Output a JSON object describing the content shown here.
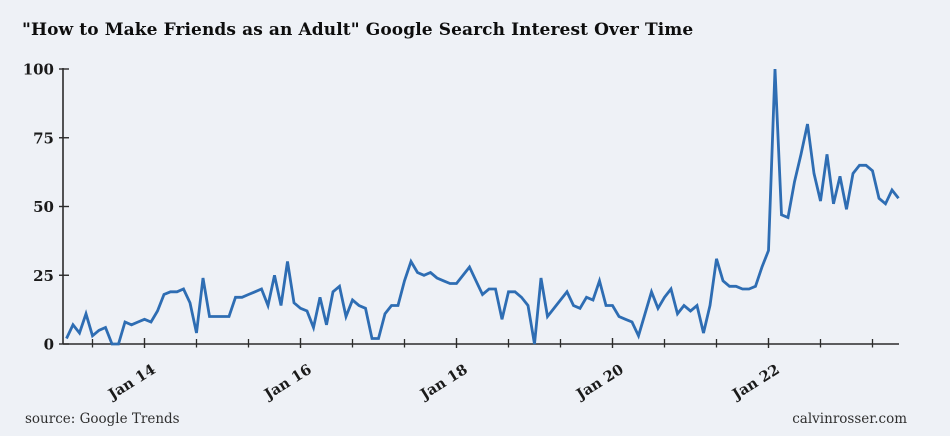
{
  "title": "\"How to Make Friends as an Adult\" Google Search Interest Over Time",
  "footer": {
    "source": "source: Google Trends",
    "site": "calvinrosser.com"
  },
  "chart_data": {
    "type": "line",
    "title": "\"How to Make Friends as an Adult\" Google Search Interest Over Time",
    "xlabel": "",
    "ylabel": "",
    "x_start": "2013-01",
    "x_end": "2023-09",
    "frequency": "monthly",
    "values": [
      2,
      7,
      4,
      11,
      3,
      5,
      6,
      0,
      0,
      8,
      7,
      8,
      9,
      8,
      12,
      18,
      19,
      19,
      20,
      15,
      4,
      24,
      10,
      10,
      10,
      10,
      17,
      17,
      18,
      19,
      20,
      14,
      25,
      14,
      30,
      15,
      13,
      12,
      6,
      17,
      7,
      19,
      21,
      10,
      16,
      14,
      13,
      2,
      2,
      11,
      14,
      14,
      23,
      30,
      26,
      25,
      26,
      24,
      23,
      22,
      22,
      25,
      28,
      23,
      18,
      20,
      20,
      9,
      19,
      19,
      17,
      14,
      0,
      24,
      10,
      13,
      16,
      19,
      14,
      13,
      17,
      16,
      23,
      14,
      14,
      10,
      9,
      8,
      3,
      11,
      19,
      13,
      17,
      20,
      11,
      14,
      12,
      14,
      4,
      14,
      31,
      23,
      21,
      21,
      20,
      20,
      21,
      28,
      34,
      100,
      47,
      46,
      59,
      69,
      80,
      62,
      52,
      69,
      51,
      61,
      49,
      62,
      65,
      65,
      63,
      53,
      51,
      56,
      53
    ],
    "ylim": [
      0,
      100
    ],
    "y_ticks": [
      0,
      25,
      50,
      75,
      100
    ],
    "x_ticks": [
      {
        "month": "2014-01",
        "label": "Jan 14"
      },
      {
        "month": "2016-01",
        "label": "Jan 16"
      },
      {
        "month": "2018-01",
        "label": "Jan 18"
      },
      {
        "month": "2020-01",
        "label": "Jan 20"
      },
      {
        "month": "2022-01",
        "label": "Jan 22"
      }
    ],
    "x_minor_ticks": [
      "2013-05",
      "2014-09",
      "2015-05",
      "2016-09",
      "2017-05",
      "2018-09",
      "2019-05",
      "2020-09",
      "2021-05",
      "2022-09",
      "2023-05"
    ],
    "grid": false,
    "legend": "none",
    "colors": {
      "line": "#2e6db3",
      "background": "#eef1f6",
      "text": "#1a1a1a",
      "axis": "#2b2b2b"
    }
  }
}
